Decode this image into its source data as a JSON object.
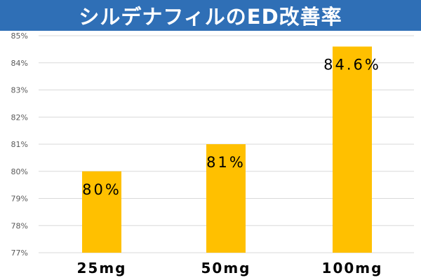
{
  "chart_data": {
    "type": "bar",
    "title": "シルデナフィルのED改善率",
    "categories": [
      "25mg",
      "50mg",
      "100mg"
    ],
    "values": [
      80,
      81,
      84.6
    ],
    "data_labels": [
      "80%",
      "81%",
      "84.6%"
    ],
    "ylim": [
      77,
      85
    ],
    "yticks": [
      "77%",
      "78%",
      "79%",
      "80%",
      "81%",
      "82%",
      "83%",
      "84%",
      "85%"
    ],
    "ytick_values": [
      77,
      78,
      79,
      80,
      81,
      82,
      83,
      84,
      85
    ],
    "xlabel": "",
    "ylabel": "",
    "grid": true,
    "legend": "none"
  },
  "colors": {
    "title_bg": "#2f6fb6",
    "title_text": "#ffffff",
    "bar": "#ffc000",
    "grid": "#d9d9d9",
    "tick_text": "#595959",
    "label_text": "#000000"
  }
}
